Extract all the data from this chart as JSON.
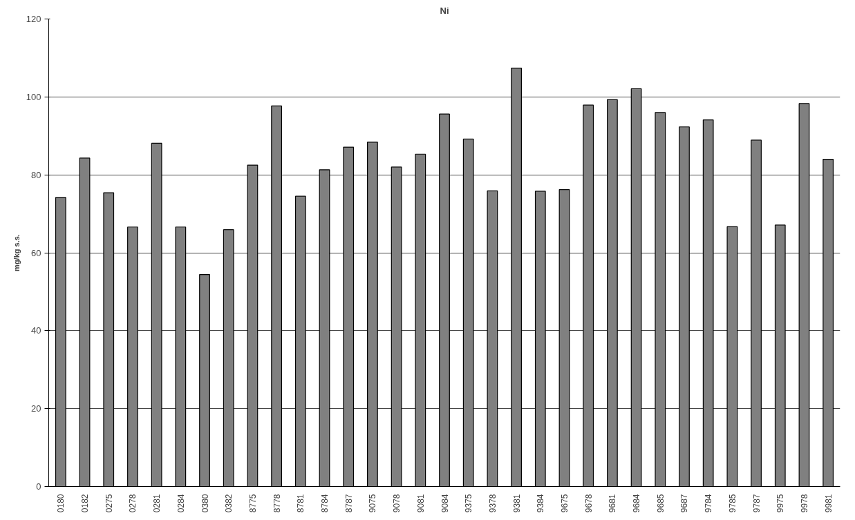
{
  "chart_data": {
    "type": "bar",
    "title": "Ni",
    "ylabel": "mg/kg s.s.",
    "categories": [
      "0180",
      "0182",
      "0275",
      "0278",
      "0281",
      "0284",
      "0380",
      "0382",
      "8775",
      "8778",
      "8781",
      "8784",
      "8787",
      "9075",
      "9078",
      "9081",
      "9084",
      "9375",
      "9378",
      "9381",
      "9384",
      "9675",
      "9678",
      "9681",
      "9684",
      "9685",
      "9687",
      "9784",
      "9785",
      "9787",
      "9975",
      "9978",
      "9981"
    ],
    "values": [
      74.2,
      84.3,
      75.4,
      66.6,
      88.1,
      66.6,
      54.4,
      65.9,
      82.5,
      97.7,
      74.5,
      81.3,
      87.1,
      88.4,
      82.0,
      85.3,
      95.6,
      89.2,
      75.9,
      107.4,
      75.8,
      76.2,
      97.9,
      99.3,
      102.1,
      96.0,
      92.3,
      94.1,
      66.7,
      88.9,
      67.1,
      98.3,
      84.0
    ],
    "color": "#808080",
    "ylim": [
      0,
      120
    ],
    "yticks": [
      0,
      20,
      40,
      60,
      80,
      100,
      120
    ],
    "grid": "y"
  }
}
